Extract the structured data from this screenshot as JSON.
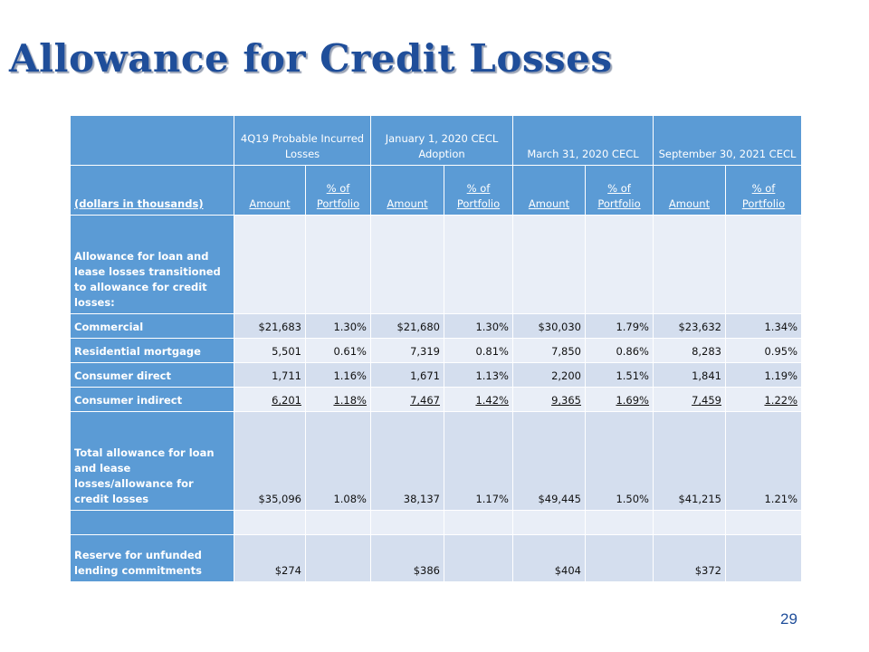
{
  "slide": {
    "title": "Allowance for Credit Losses",
    "page_number": "29"
  },
  "table": {
    "periods": [
      "4Q19 Probable Incurred Losses",
      "January 1, 2020 CECL Adoption",
      "March 31, 2020 CECL",
      "September 30, 2021 CECL"
    ],
    "units_label": "(dollars in thousands)",
    "amount_label": "Amount",
    "pct_label": "% of Portfolio",
    "rows": [
      {
        "label": "Allowance for loan and lease losses transitioned to allowance for credit losses:",
        "cells": [
          "",
          "",
          "",
          "",
          "",
          "",
          "",
          ""
        ]
      },
      {
        "label": "Commercial",
        "cells": [
          "$21,683",
          "1.30%",
          "$21,680",
          "1.30%",
          "$30,030",
          "1.79%",
          "$23,632",
          "1.34%"
        ]
      },
      {
        "label": "Residential mortgage",
        "cells": [
          "5,501",
          "0.61%",
          "7,319",
          "0.81%",
          "7,850",
          "0.86%",
          "8,283",
          "0.95%"
        ]
      },
      {
        "label": "Consumer direct",
        "cells": [
          "1,711",
          "1.16%",
          "1,671",
          "1.13%",
          "2,200",
          "1.51%",
          "1,841",
          "1.19%"
        ]
      },
      {
        "label": "Consumer indirect",
        "cells": [
          "6,201",
          "1.18%",
          "7,467",
          "1.42%",
          "9,365",
          "1.69%",
          "7,459",
          "1.22%"
        ]
      },
      {
        "label": "Total allowance for loan and lease losses/allowance for credit losses",
        "cells": [
          "$35,096",
          "1.08%",
          "38,137",
          "1.17%",
          "$49,445",
          "1.50%",
          "$41,215",
          "1.21%"
        ]
      },
      {
        "label": "",
        "cells": [
          "",
          "",
          "",
          "",
          "",
          "",
          "",
          ""
        ]
      },
      {
        "label": "Reserve for unfunded lending commitments",
        "cells": [
          "$274",
          "",
          "$386",
          "",
          "$404",
          "",
          "$372",
          ""
        ]
      }
    ]
  },
  "colors": {
    "title": "#1F4E9A",
    "header_fill": "#5B9BD5",
    "cell_fill": "#D4DEEE",
    "cell_fill_alt": "#E9EEF7"
  }
}
